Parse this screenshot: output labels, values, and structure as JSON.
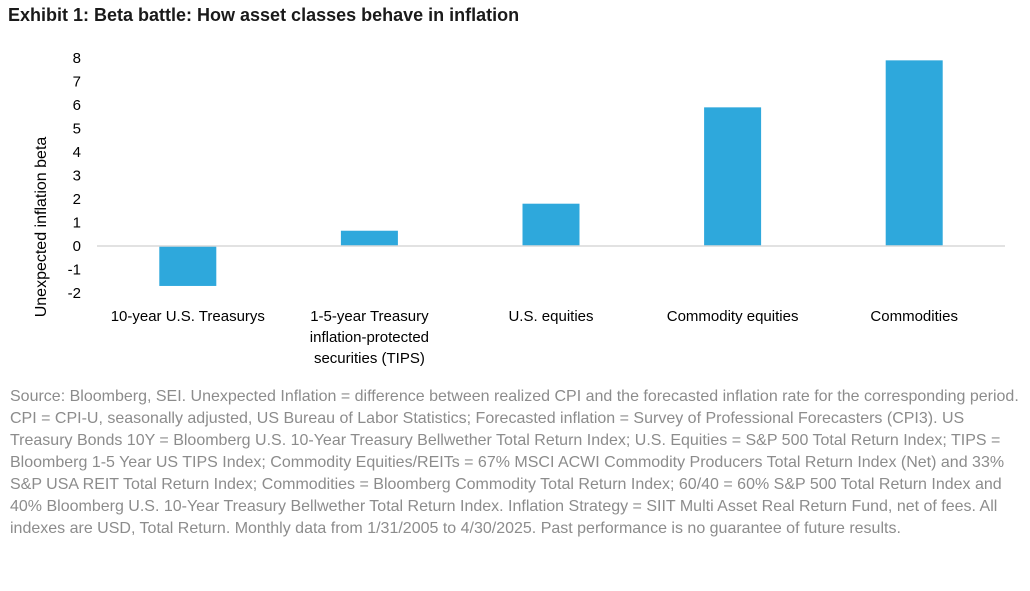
{
  "title": "Exhibit 1: Beta battle: How asset classes behave in inflation",
  "chart_data": {
    "type": "bar",
    "categories": [
      [
        "10-year U.S. Treasurys"
      ],
      [
        "1-5-year Treasury",
        "inflation-protected",
        "securities (TIPS)"
      ],
      [
        "U.S. equities"
      ],
      [
        "Commodity equities"
      ],
      [
        "Commodities"
      ]
    ],
    "values": [
      -1.7,
      0.65,
      1.8,
      5.9,
      7.9
    ],
    "ylabel": "Unexpected inflation beta",
    "xlabel": "",
    "ylim": [
      -2,
      8
    ],
    "yticks": [
      8,
      7,
      6,
      5,
      4,
      3,
      2,
      1,
      0,
      -1,
      -2
    ],
    "bar_color": "#2ea8dc",
    "axis_color": "#d9d9d9",
    "grid": false,
    "legend": "none"
  },
  "source": "Source: Bloomberg, SEI. Unexpected Inflation = difference between realized CPI and the forecasted inflation rate for the corresponding period. CPI = CPI-U, seasonally adjusted, US Bureau of Labor Statistics; Forecasted inflation = Survey of Professional Forecasters (CPI3). US Treasury Bonds 10Y = Bloomberg U.S. 10-Year Treasury Bellwether Total Return Index; U.S. Equities = S&P 500 Total Return Index; TIPS = Bloomberg 1-5 Year US TIPS Index; Commodity Equities/REITs = 67% MSCI ACWI Commodity Producers Total Return Index (Net) and 33% S&P USA REIT Total Return Index; Commodities = Bloomberg Commodity Total Return Index; 60/40 = 60% S&P 500 Total Return Index and 40% Bloomberg U.S. 10-Year Treasury Bellwether Total Return Index. Inflation Strategy = SIIT Multi Asset Real Return Fund, net of fees. All indexes are USD, Total Return. Monthly data from 1/31/2005 to 4/30/2025. Past performance is no guarantee of future results."
}
